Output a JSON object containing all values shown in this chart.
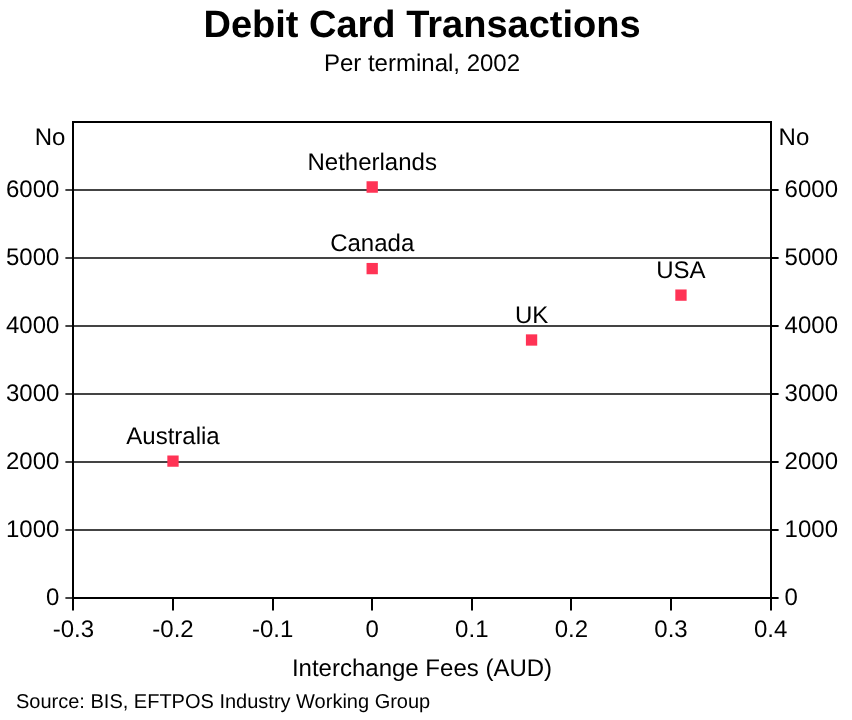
{
  "chart_data": {
    "type": "scatter",
    "title": "Debit Card Transactions",
    "subtitle": "Per terminal, 2002",
    "xlabel": "Interchange Fees (AUD)",
    "ylabel": "No",
    "y2label": "No",
    "x": [
      -0.2,
      0,
      0,
      0.16,
      0.31
    ],
    "series": [
      {
        "color": "#ff3355",
        "values": [
          2020,
          6050,
          4850,
          3800,
          4460
        ]
      }
    ],
    "annotations": [
      {
        "text": "Australia",
        "x": -0.2,
        "y": 2020
      },
      {
        "text": "Netherlands",
        "x": 0,
        "y": 6050
      },
      {
        "text": "Canada",
        "x": 0,
        "y": 4850
      },
      {
        "text": "UK",
        "x": 0.16,
        "y": 3800
      },
      {
        "text": "USA",
        "x": 0.31,
        "y": 4460
      },
      "Source: BIS, EFTPOS Industry Working Group"
    ],
    "xlim": [
      -0.3,
      0.4
    ],
    "xticks": [
      -0.3,
      -0.2,
      -0.1,
      0,
      0.1,
      0.2,
      0.3,
      0.4
    ],
    "ylim": [
      0,
      7000
    ],
    "yticks": [
      0,
      1000,
      2000,
      3000,
      4000,
      5000,
      6000
    ],
    "y2lim": [
      0,
      7000
    ],
    "y2ticks": [
      0,
      1000,
      2000,
      3000,
      4000,
      5000,
      6000
    ],
    "grid": "y",
    "legend": false,
    "marker": "square"
  }
}
